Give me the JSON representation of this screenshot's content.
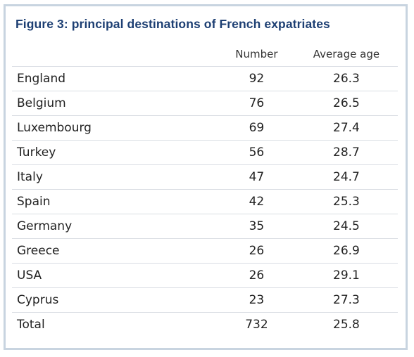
{
  "figure": {
    "title": "Figure 3: principal destinations of French expatriates"
  },
  "table": {
    "columns": [
      "",
      "Number",
      "Average age"
    ],
    "rows": [
      {
        "country": "England",
        "number": "92",
        "avg_age": "26.3"
      },
      {
        "country": "Belgium",
        "number": "76",
        "avg_age": "26.5"
      },
      {
        "country": "Luxembourg",
        "number": "69",
        "avg_age": "27.4"
      },
      {
        "country": "Turkey",
        "number": "56",
        "avg_age": "28.7"
      },
      {
        "country": "Italy",
        "number": "47",
        "avg_age": "24.7"
      },
      {
        "country": "Spain",
        "number": "42",
        "avg_age": "25.3"
      },
      {
        "country": "Germany",
        "number": "35",
        "avg_age": "24.5"
      },
      {
        "country": "Greece",
        "number": "26",
        "avg_age": "26.9"
      },
      {
        "country": "USA",
        "number": "26",
        "avg_age": "29.1"
      },
      {
        "country": "Cyprus",
        "number": "23",
        "avg_age": "27.3"
      },
      {
        "country": "Total",
        "number": "732",
        "avg_age": "25.8"
      }
    ]
  },
  "colors": {
    "title": "#1d3f73",
    "frame_border": "#c8d4e0",
    "row_divider": "#d9dde3",
    "text": "#222222"
  }
}
